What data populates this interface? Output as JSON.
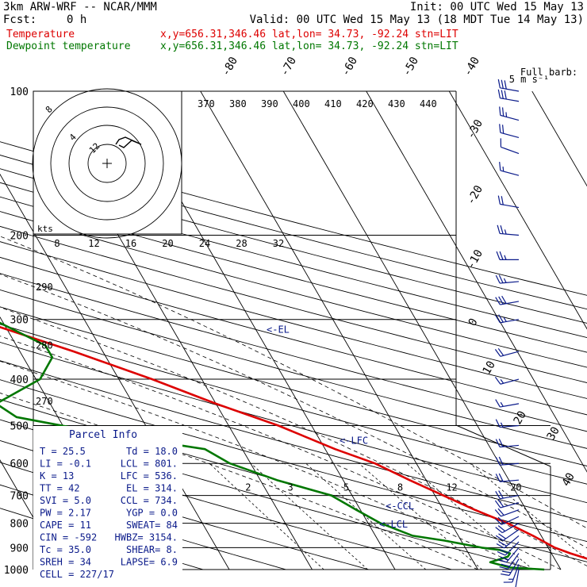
{
  "header": {
    "model": "3km ARW-WRF -- NCAR/MMM",
    "init": "Init: 00 UTC Wed 15 May 13",
    "fcst_label": "Fcst:",
    "fcst_value": "0 h",
    "valid": "Valid: 00 UTC Wed 15 May 13 (18 MDT Tue 14 May 13)",
    "series": [
      {
        "name": "Temperature",
        "info": "x,y=656.31,346.46   lat,lon= 34.73, -92.24  stn=LIT",
        "color": "#dd0000"
      },
      {
        "name": "Dewpoint temperature",
        "info": "x,y=656.31,346.46   lat,lon= 34.73, -92.24  stn=LIT",
        "color": "#007700"
      }
    ],
    "barb_legend_1": "Full barb:",
    "barb_legend_2": "5 m s⁻¹"
  },
  "parcel_info": {
    "title": "Parcel Info",
    "rows": [
      [
        "T   =     25.5",
        "Td =   18.0"
      ],
      [
        "LI  =     -0.1",
        "LCL =  801."
      ],
      [
        "K   =       13",
        "LFC =  536."
      ],
      [
        "TT  =       42",
        "EL  =  314."
      ],
      [
        "SVI =      5.0",
        "CCL =  734."
      ],
      [
        "PW  =     2.17",
        "YGP =   0.0"
      ],
      [
        "CAPE =      11",
        "SWEAT=    84"
      ],
      [
        "CIN  =    -592",
        "HWBZ= 3154."
      ],
      [
        "Tc  =     35.0",
        "SHEAR=    8."
      ],
      [
        "SREH =      34",
        "LAPSE=   6.9"
      ],
      [
        "CELL = 227/17",
        ""
      ]
    ]
  },
  "hodograph": {
    "unit_label": "kts",
    "ring_labels": [
      "8",
      "12",
      "16",
      "20",
      "24",
      "28",
      "32"
    ],
    "ring_values": [
      8,
      4,
      12
    ]
  },
  "level_markers": [
    {
      "label": "<-EL",
      "p": 314
    },
    {
      "label": "<-LFC",
      "p": 536
    },
    {
      "label": "<-CCL",
      "p": 734
    },
    {
      "label": "<-LCL",
      "p": 801
    }
  ],
  "chart_data": {
    "type": "line",
    "title": "",
    "y_axis": {
      "scale": "log pressure (hPa)",
      "range": [
        1000,
        100
      ],
      "ticks": [
        100,
        200,
        300,
        400,
        500,
        600,
        700,
        800,
        900,
        1000
      ]
    },
    "isotherm_labels": [
      -80,
      -70,
      -60,
      -50,
      -40,
      -30,
      -20,
      -10,
      0,
      10,
      20,
      30,
      40
    ],
    "theta_labels": [
      370,
      380,
      390,
      400,
      410,
      420,
      430,
      440
    ],
    "theta_left_labels": [
      {
        "v": 290,
        "p": 257
      },
      {
        "v": 280,
        "p": 340
      },
      {
        "v": 270,
        "p": 445
      }
    ],
    "mixing_ratio_labels": [
      2,
      3,
      5,
      8,
      12,
      20
    ],
    "series": [
      {
        "name": "Temperature",
        "color": "#dd0000",
        "points": [
          [
            1000,
            25.5
          ],
          [
            975,
            26.5
          ],
          [
            950,
            24
          ],
          [
            925,
            22.3
          ],
          [
            900,
            20.8
          ],
          [
            850,
            19
          ],
          [
            800,
            16.8
          ],
          [
            750,
            13.8
          ],
          [
            700,
            11
          ],
          [
            650,
            8
          ],
          [
            600,
            5
          ],
          [
            560,
            1.2
          ],
          [
            500,
            -4
          ],
          [
            450,
            -10
          ],
          [
            400,
            -16
          ],
          [
            350,
            -23.5
          ],
          [
            320,
            -29
          ],
          [
            300,
            -33
          ],
          [
            280,
            -37
          ],
          [
            250,
            -42.5
          ],
          [
            200,
            -54.5
          ],
          [
            175,
            -60.5
          ],
          [
            150,
            -65.5
          ],
          [
            140,
            -66
          ],
          [
            125,
            -63.5
          ],
          [
            110,
            -60.5
          ],
          [
            100,
            -60
          ]
        ]
      },
      {
        "name": "Dewpoint temperature",
        "color": "#007700",
        "points": [
          [
            1000,
            18
          ],
          [
            990,
            14
          ],
          [
            965,
            12
          ],
          [
            940,
            14.5
          ],
          [
            925,
            15
          ],
          [
            910,
            14
          ],
          [
            900,
            12
          ],
          [
            870,
            8
          ],
          [
            850,
            4.5
          ],
          [
            800,
            1.5
          ],
          [
            750,
            -0.5
          ],
          [
            700,
            -2.5
          ],
          [
            650,
            -8
          ],
          [
            600,
            -12.5
          ],
          [
            560,
            -14.5
          ],
          [
            520,
            -25.5
          ],
          [
            480,
            -35
          ],
          [
            450,
            -36.5
          ],
          [
            400,
            -29.5
          ],
          [
            360,
            -26.5
          ],
          [
            340,
            -26.5
          ],
          [
            300,
            -31
          ],
          [
            280,
            -36
          ],
          [
            250,
            -45
          ],
          [
            230,
            -51
          ],
          [
            200,
            -59
          ],
          [
            175,
            -66
          ],
          [
            150,
            -72
          ],
          [
            140,
            -75
          ],
          [
            125,
            -79
          ],
          [
            110,
            -82.5
          ],
          [
            100,
            -84.5
          ]
        ]
      }
    ],
    "wind_barbs": [
      {
        "p": 1000,
        "dir": 190,
        "spd": 10
      },
      {
        "p": 975,
        "dir": 200,
        "spd": 15
      },
      {
        "p": 950,
        "dir": 210,
        "spd": 20
      },
      {
        "p": 925,
        "dir": 215,
        "spd": 20
      },
      {
        "p": 900,
        "dir": 220,
        "spd": 20
      },
      {
        "p": 875,
        "dir": 225,
        "spd": 20
      },
      {
        "p": 850,
        "dir": 230,
        "spd": 20
      },
      {
        "p": 825,
        "dir": 235,
        "spd": 20
      },
      {
        "p": 800,
        "dir": 240,
        "spd": 20
      },
      {
        "p": 775,
        "dir": 245,
        "spd": 20
      },
      {
        "p": 750,
        "dir": 250,
        "spd": 20
      },
      {
        "p": 725,
        "dir": 255,
        "spd": 20
      },
      {
        "p": 700,
        "dir": 260,
        "spd": 20
      },
      {
        "p": 650,
        "dir": 265,
        "spd": 20
      },
      {
        "p": 600,
        "dir": 265,
        "spd": 20
      },
      {
        "p": 550,
        "dir": 265,
        "spd": 20
      },
      {
        "p": 500,
        "dir": 265,
        "spd": 15
      },
      {
        "p": 450,
        "dir": 260,
        "spd": 15
      },
      {
        "p": 400,
        "dir": 255,
        "spd": 15
      },
      {
        "p": 350,
        "dir": 255,
        "spd": 20
      },
      {
        "p": 300,
        "dir": 260,
        "spd": 25
      },
      {
        "p": 275,
        "dir": 260,
        "spd": 30
      },
      {
        "p": 250,
        "dir": 265,
        "spd": 25
      },
      {
        "p": 225,
        "dir": 270,
        "spd": 25
      },
      {
        "p": 200,
        "dir": 275,
        "spd": 25
      },
      {
        "p": 175,
        "dir": 280,
        "spd": 20
      },
      {
        "p": 150,
        "dir": 285,
        "spd": 15
      },
      {
        "p": 135,
        "dir": 290,
        "spd": 10
      },
      {
        "p": 125,
        "dir": 285,
        "spd": 20
      },
      {
        "p": 115,
        "dir": 285,
        "spd": 25
      },
      {
        "p": 105,
        "dir": 280,
        "spd": 30
      },
      {
        "p": 100,
        "dir": 280,
        "spd": 30
      }
    ]
  }
}
